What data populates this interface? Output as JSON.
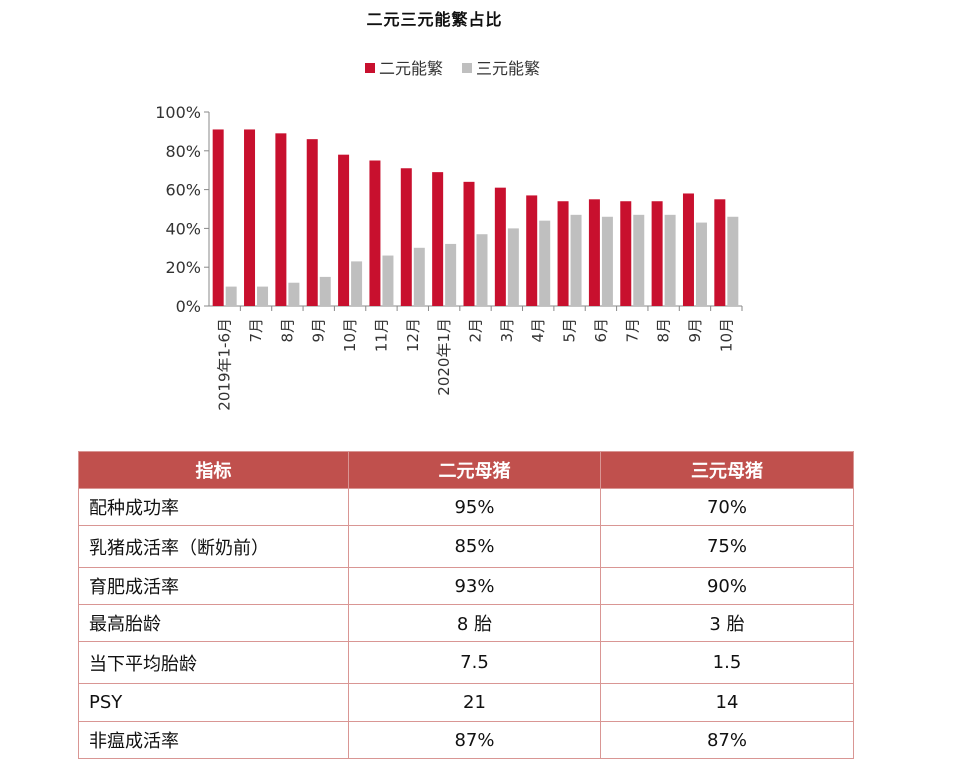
{
  "chart_data": {
    "type": "bar",
    "title": "二元三元能繁占比",
    "legend_position": "top-center",
    "grid": false,
    "categories": [
      "2019年1-6月",
      "7月",
      "8月",
      "9月",
      "10月",
      "11月",
      "12月",
      "2020年1月",
      "2月",
      "3月",
      "4月",
      "5月",
      "6月",
      "7月",
      "8月",
      "9月",
      "10月"
    ],
    "series": [
      {
        "name": "二元能繁",
        "color": "#c8102e",
        "values": [
          91,
          91,
          89,
          86,
          78,
          75,
          71,
          69,
          64,
          61,
          57,
          54,
          55,
          54,
          54,
          58,
          55
        ]
      },
      {
        "name": "三元能繁",
        "color": "#bfbfbf",
        "values": [
          10,
          10,
          12,
          15,
          23,
          26,
          30,
          32,
          37,
          40,
          44,
          47,
          46,
          47,
          47,
          43,
          46
        ]
      }
    ],
    "ylim": [
      0,
      100
    ],
    "yticks": [
      0,
      20,
      40,
      60,
      80,
      100
    ],
    "ytick_labels": [
      "0%",
      "20%",
      "40%",
      "60%",
      "80%",
      "100%"
    ],
    "xlabel": "",
    "ylabel": ""
  },
  "table": {
    "headers": [
      "指标",
      "二元母猪",
      "三元母猪"
    ],
    "rows": [
      [
        "配种成功率",
        "95%",
        "70%"
      ],
      [
        "乳猪成活率（断奶前）",
        "85%",
        "75%"
      ],
      [
        "育肥成活率",
        "93%",
        "90%"
      ],
      [
        "最高胎龄",
        "8 胎",
        "3 胎"
      ],
      [
        "当下平均胎龄",
        "7.5",
        "1.5"
      ],
      [
        "PSY",
        "21",
        "14"
      ],
      [
        "非瘟成活率",
        "87%",
        "87%"
      ]
    ],
    "header_color": "#c0504d"
  }
}
